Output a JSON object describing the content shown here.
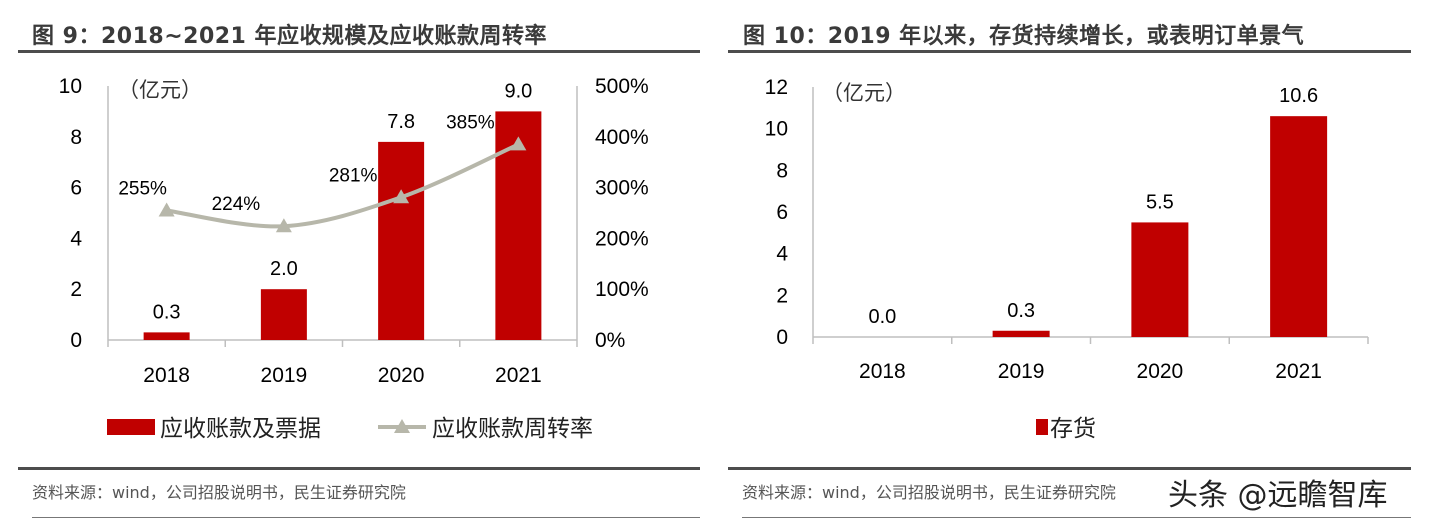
{
  "colors": {
    "bar": "#C00000",
    "line": "#B7B7AA",
    "axis": "#BFBFBF",
    "text": "#000000"
  },
  "watermark": "头条 @远瞻智库",
  "chart_data": [
    {
      "type": "bar+line",
      "title": "图 9：2018~2021 年应收规模及应收账款周转率",
      "unit_label": "（亿元）",
      "source": "资料来源：wind，公司招股说明书，民生证券研究院",
      "categories": [
        "2018",
        "2019",
        "2020",
        "2021"
      ],
      "y_left": {
        "range": [
          0,
          10
        ],
        "ticks": [
          "0",
          "2",
          "4",
          "6",
          "8",
          "10"
        ]
      },
      "y_right": {
        "range": [
          0,
          500
        ],
        "ticks": [
          "0%",
          "100%",
          "200%",
          "300%",
          "400%",
          "500%"
        ]
      },
      "series": [
        {
          "name": "应收账款及票据",
          "kind": "bar",
          "axis": "left",
          "values": [
            0.3,
            2.0,
            7.8,
            9.0
          ],
          "labels": [
            "0.3",
            "2.0",
            "7.8",
            "9.0"
          ]
        },
        {
          "name": "应收账款周转率",
          "kind": "line",
          "axis": "right",
          "marker": "triangle",
          "smooth": true,
          "values": [
            255,
            224,
            281,
            385
          ],
          "labels": [
            "255%",
            "224%",
            "281%",
            "385%"
          ]
        }
      ],
      "legend": "bottom",
      "grid": false
    },
    {
      "type": "bar",
      "title": "图 10：2019 年以来，存货持续增长，或表明订单景气",
      "unit_label": "（亿元）",
      "source": "资料来源：wind，公司招股说明书，民生证券研究院",
      "categories": [
        "2018",
        "2019",
        "2020",
        "2021"
      ],
      "y_left": {
        "range": [
          0,
          12
        ],
        "ticks": [
          "0",
          "2",
          "4",
          "6",
          "8",
          "10",
          "12"
        ]
      },
      "series": [
        {
          "name": "存货",
          "kind": "bar",
          "axis": "left",
          "values": [
            0.0,
            0.3,
            5.5,
            10.6
          ],
          "labels": [
            "0.0",
            "0.3",
            "5.5",
            "10.6"
          ]
        }
      ],
      "legend": "bottom",
      "grid": false
    }
  ]
}
